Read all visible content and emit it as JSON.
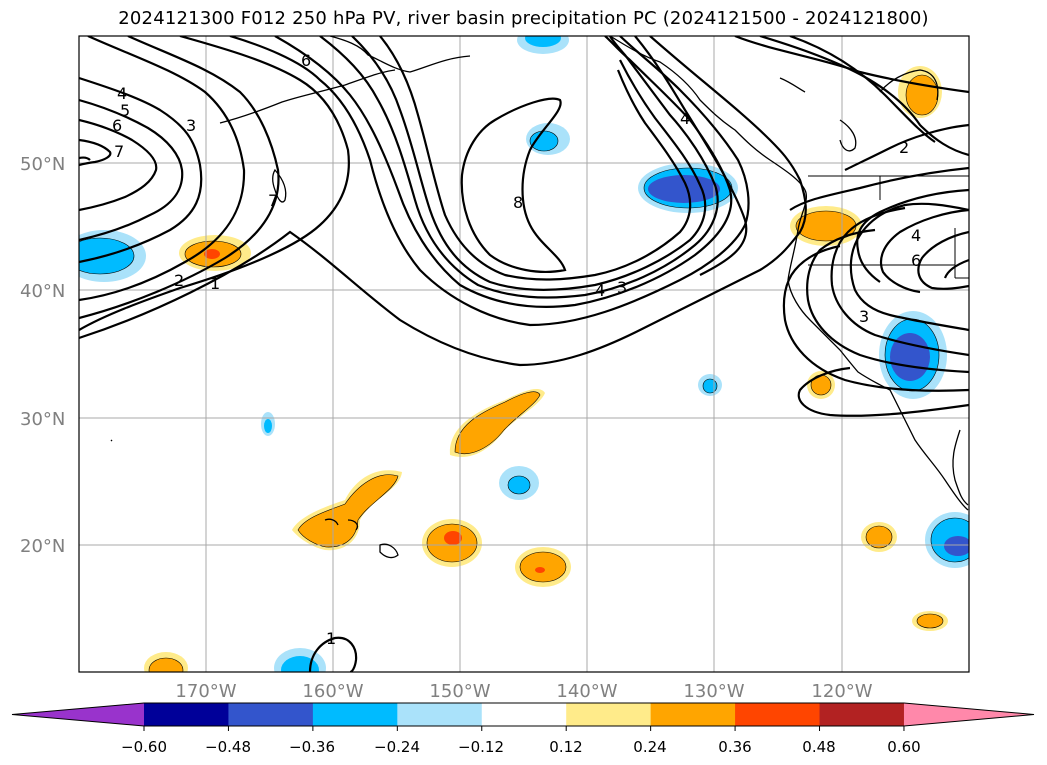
{
  "title": "2024121300 F012 250 hPa PV, river basin precipitation PC (2024121500 - 2024121800)",
  "lat_labels": [
    "50°N",
    "40°N",
    "30°N",
    "20°N"
  ],
  "lon_labels": [
    "170°W",
    "160°W",
    "150°W",
    "140°W",
    "130°W",
    "120°W"
  ],
  "contour_labels": [
    "4",
    "5",
    "6",
    "7",
    "6",
    "3",
    "2",
    "1",
    "7",
    "8",
    "2",
    "4",
    "6",
    "4",
    "3",
    "4",
    "3",
    "1"
  ],
  "colorbar": {
    "ticks": [
      "−0.60",
      "−0.48",
      "−0.36",
      "−0.24",
      "−0.12",
      "0.12",
      "0.24",
      "0.36",
      "0.48",
      "0.60"
    ],
    "colors": [
      "#9933cc",
      "#000099",
      "#3355cc",
      "#00bbff",
      "#aae2fa",
      "#ffffff",
      "#ffeb8a",
      "#ffa500",
      "#ff4500",
      "#b22222",
      "#ff88aa"
    ]
  }
}
